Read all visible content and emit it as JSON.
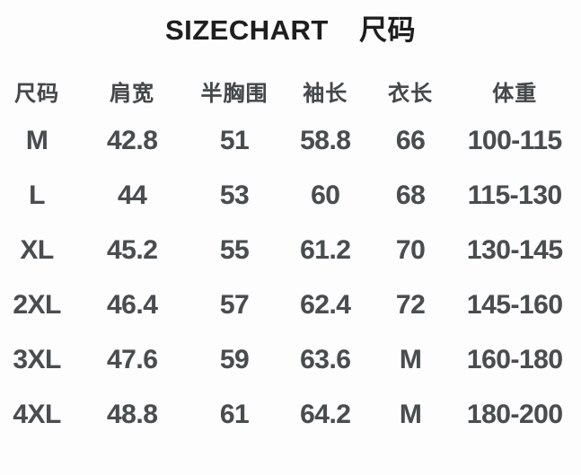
{
  "colors": {
    "background": "#fdfdfd",
    "title_text": "#1e1e1e",
    "table_text": "#4a4d4f"
  },
  "chart_data": {
    "type": "table",
    "title": "SIZECHART  尺码",
    "columns": [
      "尺码",
      "肩宽",
      "半胸围",
      "袖长",
      "衣长",
      "体重"
    ],
    "rows": [
      [
        "M",
        "42.8",
        "51",
        "58.8",
        "66",
        "100-115"
      ],
      [
        "L",
        "44",
        "53",
        "60",
        "68",
        "115-130"
      ],
      [
        "XL",
        "45.2",
        "55",
        "61.2",
        "70",
        "130-145"
      ],
      [
        "2XL",
        "46.4",
        "57",
        "62.4",
        "72",
        "145-160"
      ],
      [
        "3XL",
        "47.6",
        "59",
        "63.6",
        "M",
        "160-180"
      ],
      [
        "4XL",
        "48.8",
        "61",
        "64.2",
        "M",
        "180-200"
      ]
    ],
    "layout": {
      "grid": "off",
      "borders": "none",
      "header_position": "top"
    }
  }
}
